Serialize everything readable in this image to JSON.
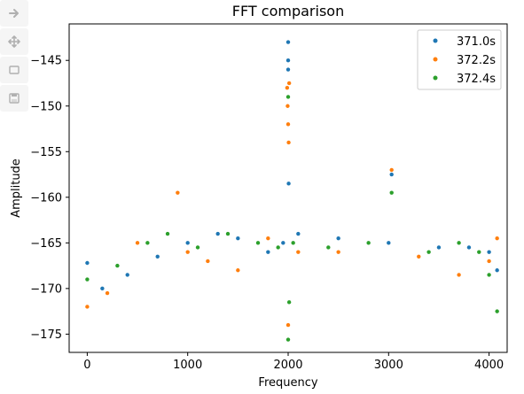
{
  "toolbar": {
    "items": [
      {
        "name": "forward-arrow-icon"
      },
      {
        "name": "pan-move-icon"
      },
      {
        "name": "zoom-rectangle-icon"
      },
      {
        "name": "save-figure-icon"
      }
    ]
  },
  "chart_data": {
    "type": "scatter",
    "title": "FFT comparison",
    "xlabel": "Frequency",
    "ylabel": "Amplitude",
    "xlim": [
      -180,
      4180
    ],
    "ylim": [
      -177,
      -141
    ],
    "xticks": [
      0,
      1000,
      2000,
      3000,
      4000
    ],
    "yticks": [
      -145,
      -150,
      -155,
      -160,
      -165,
      -170,
      -175
    ],
    "xtick_labels": [
      "0",
      "1000",
      "2000",
      "3000",
      "4000"
    ],
    "ytick_labels": [
      "−145",
      "−150",
      "−155",
      "−160",
      "−165",
      "−170",
      "−175"
    ],
    "grid": false,
    "legend_position": "top-right",
    "series": [
      {
        "name": "371.0s",
        "color": "#1f77b4",
        "points": [
          [
            0,
            -167.2
          ],
          [
            150,
            -170.0
          ],
          [
            400,
            -168.5
          ],
          [
            700,
            -166.5
          ],
          [
            1000,
            -165.0
          ],
          [
            1300,
            -164.0
          ],
          [
            1500,
            -164.5
          ],
          [
            1800,
            -166.0
          ],
          [
            1950,
            -165.0
          ],
          [
            2000,
            -143.0
          ],
          [
            2000,
            -145.0
          ],
          [
            2000,
            -146.0
          ],
          [
            2005,
            -158.5
          ],
          [
            2100,
            -164.0
          ],
          [
            2500,
            -164.5
          ],
          [
            3000,
            -165.0
          ],
          [
            3030,
            -157.5
          ],
          [
            3500,
            -165.5
          ],
          [
            3800,
            -165.5
          ],
          [
            4000,
            -166.0
          ],
          [
            4080,
            -168.0
          ]
        ]
      },
      {
        "name": "372.2s",
        "color": "#ff7f0e",
        "points": [
          [
            0,
            -172.0
          ],
          [
            200,
            -170.5
          ],
          [
            500,
            -165.0
          ],
          [
            900,
            -159.5
          ],
          [
            1000,
            -166.0
          ],
          [
            1200,
            -167.0
          ],
          [
            1500,
            -168.0
          ],
          [
            1800,
            -164.5
          ],
          [
            1990,
            -148.0
          ],
          [
            1995,
            -150.0
          ],
          [
            2000,
            -152.0
          ],
          [
            2005,
            -154.0
          ],
          [
            2010,
            -147.5
          ],
          [
            2000,
            -174.0
          ],
          [
            2100,
            -166.0
          ],
          [
            2500,
            -166.0
          ],
          [
            3030,
            -157.0
          ],
          [
            3300,
            -166.5
          ],
          [
            3700,
            -168.5
          ],
          [
            4000,
            -167.0
          ],
          [
            4080,
            -164.5
          ]
        ]
      },
      {
        "name": "372.4s",
        "color": "#2ca02c",
        "points": [
          [
            0,
            -169.0
          ],
          [
            300,
            -167.5
          ],
          [
            600,
            -165.0
          ],
          [
            800,
            -164.0
          ],
          [
            1100,
            -165.5
          ],
          [
            1400,
            -164.0
          ],
          [
            1700,
            -165.0
          ],
          [
            1900,
            -165.5
          ],
          [
            2000,
            -149.0
          ],
          [
            2000,
            -175.6
          ],
          [
            2010,
            -171.5
          ],
          [
            2050,
            -165.0
          ],
          [
            2400,
            -165.5
          ],
          [
            2800,
            -165.0
          ],
          [
            3030,
            -159.5
          ],
          [
            3400,
            -166.0
          ],
          [
            3700,
            -165.0
          ],
          [
            3900,
            -166.0
          ],
          [
            4000,
            -168.5
          ],
          [
            4080,
            -172.5
          ]
        ]
      }
    ]
  }
}
